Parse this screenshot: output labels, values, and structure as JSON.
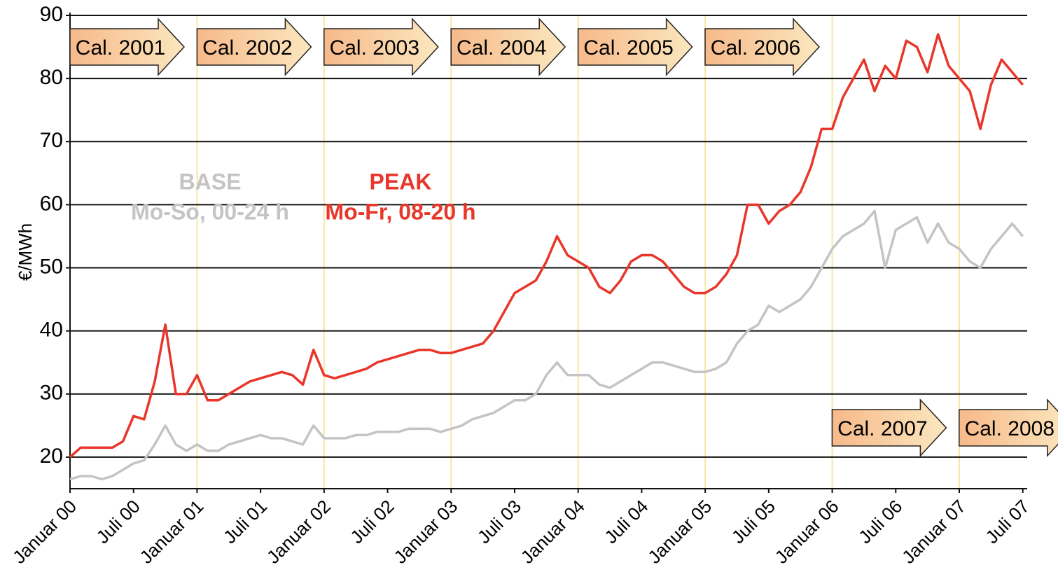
{
  "chart_data": {
    "type": "line",
    "y_label": "€/MWh",
    "ylim": [
      15,
      90
    ],
    "yticks": [
      20,
      30,
      40,
      50,
      60,
      70,
      80,
      90
    ],
    "grid": true,
    "categories": [
      "Januar 00",
      null,
      null,
      null,
      null,
      null,
      "Juli 00",
      null,
      null,
      null,
      null,
      null,
      "Januar 01",
      null,
      null,
      null,
      null,
      null,
      "Juli 01",
      null,
      null,
      null,
      null,
      null,
      "Januar 02",
      null,
      null,
      null,
      null,
      null,
      "Juli 02",
      null,
      null,
      null,
      null,
      null,
      "Januar 03",
      null,
      null,
      null,
      null,
      null,
      "Juli 03",
      null,
      null,
      null,
      null,
      null,
      "Januar 04",
      null,
      null,
      null,
      null,
      null,
      "Juli 04",
      null,
      null,
      null,
      null,
      null,
      "Januar 05",
      null,
      null,
      null,
      null,
      null,
      "Juli 05",
      null,
      null,
      null,
      null,
      null,
      "Januar 06",
      null,
      null,
      null,
      null,
      null,
      "Juli 06",
      null,
      null,
      null,
      null,
      null,
      "Januar 07",
      null,
      null,
      null,
      null,
      null,
      "Juli 07"
    ],
    "series": [
      {
        "name": "BASE",
        "description": "Mo-So, 00-24 h",
        "color": "#c4c4c4",
        "values": [
          16.5,
          17,
          17,
          16.5,
          17,
          18,
          19,
          19.5,
          22,
          25,
          22,
          21,
          22,
          21,
          21,
          22,
          22.5,
          23,
          23.5,
          23,
          23,
          22.5,
          22,
          25,
          23,
          23,
          23,
          23.5,
          23.5,
          24,
          24,
          24,
          24.5,
          24.5,
          24.5,
          24,
          24.5,
          25,
          26,
          26.5,
          27,
          28,
          29,
          29,
          30,
          33,
          35,
          33,
          33,
          33,
          31.5,
          31,
          32,
          33,
          34,
          35,
          35,
          34.5,
          34,
          33.5,
          33.5,
          34,
          35,
          38,
          40,
          41,
          44,
          43,
          44,
          45,
          47,
          50,
          53,
          55,
          56,
          57,
          59,
          50,
          56,
          57,
          58,
          54,
          57,
          54,
          53,
          51,
          50,
          53,
          55,
          57,
          55
        ]
      },
      {
        "name": "PEAK",
        "description": "Mo-Fr, 08-20 h",
        "color": "#e8362a",
        "values": [
          20,
          21.5,
          21.5,
          21.5,
          21.5,
          22.5,
          26.5,
          26,
          32,
          41,
          30,
          30,
          33,
          29,
          29,
          30,
          31,
          32,
          32.5,
          33,
          33.5,
          33,
          31.5,
          37,
          33,
          32.5,
          33,
          33.5,
          34,
          35,
          35.5,
          36,
          36.5,
          37,
          37,
          36.5,
          36.5,
          37,
          37.5,
          38,
          40,
          43,
          46,
          47,
          48,
          51,
          55,
          52,
          51,
          50,
          47,
          46,
          48,
          51,
          52,
          52,
          51,
          49,
          47,
          46,
          46,
          47,
          49,
          52,
          60,
          60,
          57,
          59,
          60,
          62,
          66,
          72,
          72,
          77,
          80,
          83,
          78,
          82,
          80,
          86,
          85,
          81,
          87,
          82,
          80,
          78,
          72,
          79,
          83,
          81,
          79
        ]
      }
    ],
    "annotations": [
      "Cal. 2001",
      "Cal. 2002",
      "Cal. 2003",
      "Cal. 2004",
      "Cal. 2005",
      "Cal. 2006",
      "Cal. 2007",
      "Cal. 2008"
    ]
  }
}
